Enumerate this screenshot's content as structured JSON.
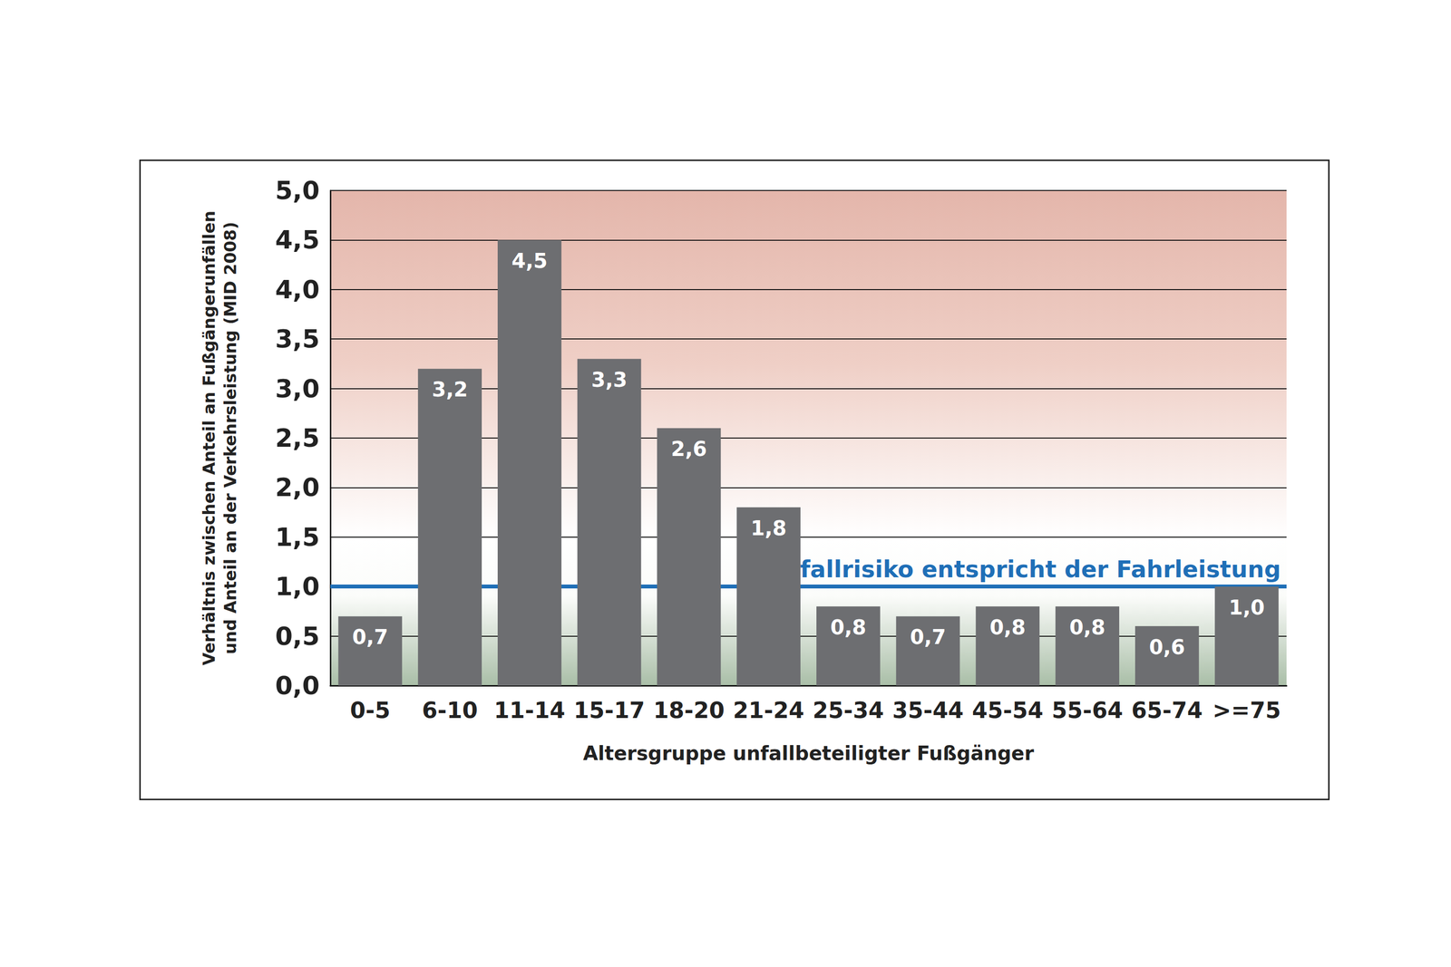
{
  "chart_data": {
    "type": "bar",
    "x_label": "Altersgruppe unfallbeteiligter Fußgänger",
    "y_label": "Verhältnis zwischen Anteil an Fußgängerunfällen\nund Anteil an der Verkehrsleistung (MID 2008)",
    "categories": [
      "0-5",
      "6-10",
      "11-14",
      "15-17",
      "18-20",
      "21-24",
      "25-34",
      "35-44",
      "45-54",
      "55-64",
      "65-74",
      ">=75"
    ],
    "values": [
      0.7,
      3.2,
      4.5,
      3.3,
      2.6,
      1.8,
      0.8,
      0.7,
      0.8,
      0.8,
      0.6,
      1.0
    ],
    "value_labels": [
      "0,7",
      "3,2",
      "4,5",
      "3,3",
      "2,6",
      "1,8",
      "0,8",
      "0,7",
      "0,8",
      "0,8",
      "0,6",
      "1,0"
    ],
    "color": "#6d6e71",
    "data_labels": true,
    "ylim": [
      0,
      5
    ],
    "yticks": [
      {
        "value": 0,
        "label": "0,0"
      },
      {
        "value": 0.5,
        "label": "0,5"
      },
      {
        "value": 1,
        "label": "1,0"
      },
      {
        "value": 1.5,
        "label": "1,5"
      },
      {
        "value": 2,
        "label": "2,0"
      },
      {
        "value": 2.5,
        "label": "2,5"
      },
      {
        "value": 3,
        "label": "3,0"
      },
      {
        "value": 3.5,
        "label": "3,5"
      },
      {
        "value": 4,
        "label": "4,0"
      },
      {
        "value": 4.5,
        "label": "4,5"
      },
      {
        "value": 5,
        "label": "5,0"
      }
    ],
    "grid": true,
    "annotations": [
      {
        "text": "Unfallrisiko entspricht der Fahrleistung",
        "y": 1,
        "color": "#1f6fb7"
      }
    ]
  }
}
